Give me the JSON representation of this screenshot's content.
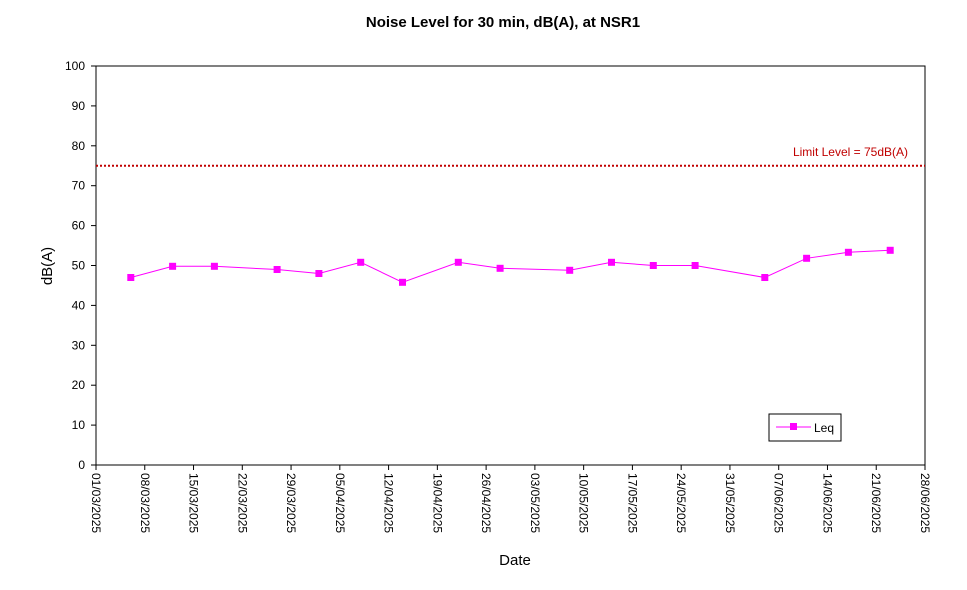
{
  "chart_data": {
    "type": "line",
    "title": "Noise Level for 30 min, dB(A), at NSR1",
    "xlabel": "Date",
    "ylabel": "dB(A)",
    "ylim": [
      0,
      100
    ],
    "yticks": [
      0,
      10,
      20,
      30,
      40,
      50,
      60,
      70,
      80,
      90,
      100
    ],
    "xlim": [
      "2025-03-01",
      "2025-06-28"
    ],
    "xticks": [
      "01/03/2025",
      "08/03/2025",
      "15/03/2025",
      "22/03/2025",
      "29/03/2025",
      "05/04/2025",
      "12/04/2025",
      "19/04/2025",
      "26/04/2025",
      "03/05/2025",
      "10/05/2025",
      "17/05/2025",
      "24/05/2025",
      "31/05/2025",
      "07/06/2025",
      "14/06/2025",
      "21/06/2025",
      "28/06/2025"
    ],
    "grid": false,
    "legend_position": "bottom-right",
    "series": [
      {
        "name": "Leq",
        "color": "#ff00ff",
        "marker": "square",
        "x": [
          "2025-03-06",
          "2025-03-12",
          "2025-03-18",
          "2025-03-27",
          "2025-04-02",
          "2025-04-08",
          "2025-04-14",
          "2025-04-22",
          "2025-04-28",
          "2025-05-08",
          "2025-05-14",
          "2025-05-20",
          "2025-05-26",
          "2025-06-05",
          "2025-06-11",
          "2025-06-17",
          "2025-06-23"
        ],
        "values": [
          47.0,
          49.8,
          49.8,
          49.0,
          48.0,
          50.8,
          45.8,
          50.8,
          49.3,
          48.8,
          50.8,
          50.0,
          50.0,
          47.0,
          51.8,
          53.3,
          53.8
        ]
      }
    ],
    "reference_lines": [
      {
        "label": "Limit Level  = 75dB(A)",
        "value": 75,
        "color": "#c00000",
        "style": "dotted"
      }
    ]
  }
}
